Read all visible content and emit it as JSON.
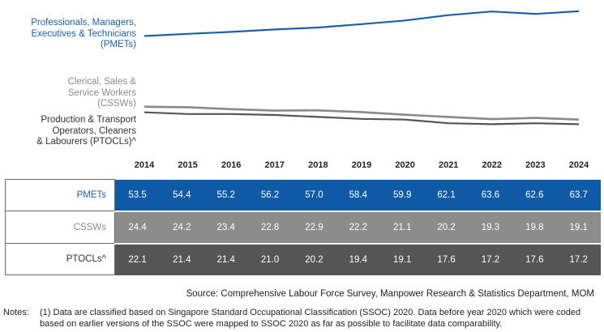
{
  "colors": {
    "pmets": "#1f5fa8",
    "cssws": "#8a8a8a",
    "ptocls": "#555555",
    "pmets_cell": "#0e5aa7",
    "cssws_cell": "#8c8c8c",
    "ptocls_cell": "#555555",
    "pmets_label": "#1f5fa8",
    "cssws_label": "#8a8a8a",
    "ptocls_label": "#333333"
  },
  "chart_data": {
    "type": "line",
    "x": [
      "2014",
      "2015",
      "2016",
      "2017",
      "2018",
      "2019",
      "2020",
      "2021",
      "2022",
      "2023",
      "2024"
    ],
    "series": [
      {
        "key": "pmets",
        "name": "Professionals, Managers, Executives & Technicians (PMETs)",
        "name_lines": [
          "Professionals, Managers,",
          "Executives & Technicians",
          "(PMETs)"
        ],
        "table_label": "PMETs",
        "values": [
          53.5,
          54.4,
          55.2,
          56.2,
          57.0,
          58.4,
          59.9,
          62.1,
          63.6,
          62.6,
          63.7
        ],
        "display": [
          "53.5",
          "54.4",
          "55.2",
          "56.2",
          "57.0",
          "58.4",
          "59.9",
          "62.1",
          "63.6",
          "62.6",
          "63.7"
        ]
      },
      {
        "key": "cssws",
        "name": "Clerical, Sales & Service Workers (CSSWs)",
        "name_lines": [
          "Clerical, Sales &",
          "Service Workers",
          "(CSSWs)"
        ],
        "table_label": "CSSWs",
        "values": [
          24.4,
          24.2,
          23.4,
          22.8,
          22.9,
          22.2,
          21.1,
          20.2,
          19.3,
          19.8,
          19.1
        ],
        "display": [
          "24.4",
          "24.2",
          "23.4",
          "22.8",
          "22.9",
          "22.2",
          "21.1",
          "20.2",
          "19.3",
          "19.8",
          "19.1"
        ]
      },
      {
        "key": "ptocls",
        "name": "Production & Transport Operators, Cleaners & Labourers (PTOCLs)^",
        "name_lines": [
          "Production & Transport",
          "Operators, Cleaners",
          "& Labourers (PTOCLs)^"
        ],
        "table_label": "PTOCLs^",
        "values": [
          22.1,
          21.4,
          21.4,
          21.0,
          20.2,
          19.4,
          19.1,
          17.6,
          17.2,
          17.6,
          17.2
        ],
        "display": [
          "22.1",
          "21.4",
          "21.4",
          "21.0",
          "20.2",
          "19.4",
          "19.1",
          "17.6",
          "17.2",
          "17.6",
          "17.2"
        ]
      }
    ],
    "title": "",
    "xlabel": "",
    "ylabel": "",
    "grid": false,
    "legend": "left"
  },
  "source": "Source: Comprehensive Labour Force Survey, Manpower Research & Statistics Department, MOM",
  "notes": {
    "label": "Notes:",
    "text": "(1)  Data are classified based on Singapore Standard Occupational Classification (SSOC) 2020. Data before year 2020 which were coded based on earlier versions of the SSOC were mapped to SSOC 2020 as far as possible to facilitate data comparability."
  }
}
